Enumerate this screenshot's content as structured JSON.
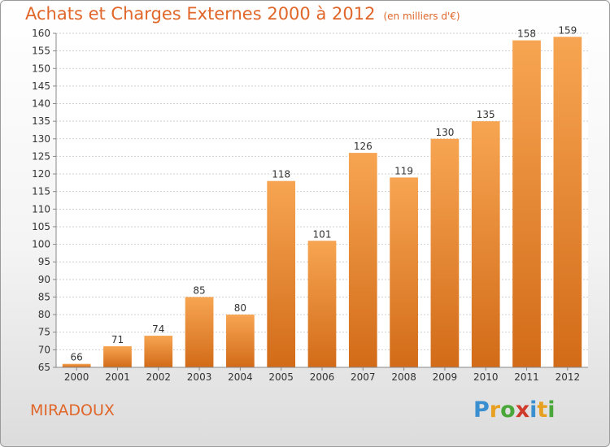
{
  "title": "Achats et Charges Externes 2000 à 2012",
  "subtitle": "(en milliers d'€)",
  "commune": "MIRADOUX",
  "logo": {
    "text": "Proxiti",
    "letters": [
      {
        "ch": "P",
        "color": "#3a8fd0"
      },
      {
        "ch": "r",
        "color": "#e8a020"
      },
      {
        "ch": "o",
        "color": "#4aa83a"
      },
      {
        "ch": "x",
        "color": "#d03a2a"
      },
      {
        "ch": "i",
        "color": "#3a8fd0"
      },
      {
        "ch": "t",
        "color": "#e8a020"
      },
      {
        "ch": "i",
        "color": "#4aa83a"
      }
    ]
  },
  "chart_data": {
    "type": "bar",
    "title": "Achats et Charges Externes 2000 à 2012",
    "subtitle": "(en milliers d'€)",
    "categories": [
      "2000",
      "2001",
      "2002",
      "2003",
      "2004",
      "2005",
      "2006",
      "2007",
      "2008",
      "2009",
      "2010",
      "2011",
      "2012"
    ],
    "values": [
      66,
      71,
      74,
      85,
      80,
      118,
      101,
      126,
      119,
      130,
      135,
      158,
      159
    ],
    "ylim": [
      65,
      160
    ],
    "yticks": [
      65,
      70,
      75,
      80,
      85,
      90,
      95,
      100,
      105,
      110,
      115,
      120,
      125,
      130,
      135,
      140,
      145,
      150,
      155,
      160
    ],
    "grid": true,
    "bar_color_top": "#f7a552",
    "bar_color_bottom": "#d26b18"
  }
}
